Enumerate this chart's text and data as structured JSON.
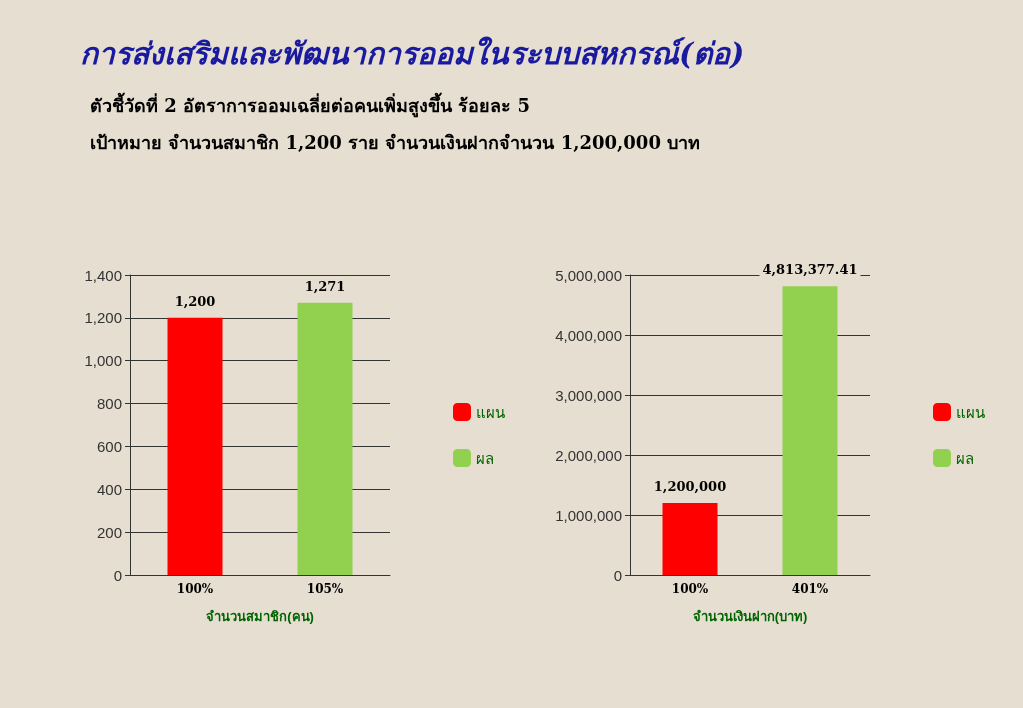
{
  "chart_data": [
    {
      "type": "bar",
      "title": "การส่งเสริมและพัฒนาการออมในระบบสหกรณ์(ต่อ)",
      "annotations": [
        "ตัวชี้วัดที่ 2  อัตราการออมเฉลี่ยต่อคนเพิ่มสูงขึ้น ร้อยละ  5",
        "เป้าหมาย  จำนวนสมาชิก 1,200 ราย จำนวนเงินฝากจำนวน 1,200,000 บาท"
      ],
      "categories": [
        "100%",
        "105%"
      ],
      "xlabel": "จำนวนสมาชิก(คน)",
      "series": [
        {
          "name": "แผน",
          "color": "#ff0000",
          "values": [
            1200,
            null
          ],
          "value_labels": [
            "1,200",
            null
          ]
        },
        {
          "name": "ผล",
          "color": "#92d050",
          "values": [
            null,
            1271
          ],
          "value_labels": [
            null,
            "1,271"
          ]
        }
      ],
      "ylim": [
        0,
        1400
      ],
      "yticks": [
        0,
        200,
        400,
        600,
        800,
        {
          "value": 1000,
          "label": "1,000"
        },
        {
          "value": 1200,
          "label": "1,200"
        },
        {
          "value": 1400,
          "label": "1,400"
        }
      ],
      "grid": "y",
      "legend": "right"
    },
    {
      "type": "bar",
      "categories": [
        "100%",
        "401%"
      ],
      "xlabel": "จำนวนเงินฝาก(บาท)",
      "series": [
        {
          "name": "แผน",
          "color": "#ff0000",
          "values": [
            1200000,
            null
          ],
          "value_labels": [
            "1,200,000",
            null
          ]
        },
        {
          "name": "ผล",
          "color": "#92d050",
          "values": [
            null,
            4813377.41
          ],
          "value_labels": [
            null,
            "4,813,377.41"
          ]
        }
      ],
      "ylim": [
        0,
        5000000
      ],
      "yticks": [
        0,
        {
          "value": 1000000,
          "label": "1,000,000"
        },
        {
          "value": 2000000,
          "label": "2,000,000"
        },
        {
          "value": 3000000,
          "label": "3,000,000"
        },
        {
          "value": 4000000,
          "label": "4,000,000"
        },
        {
          "value": 5000000,
          "label": "5,000,000"
        }
      ],
      "grid": "y",
      "legend": "right"
    }
  ]
}
